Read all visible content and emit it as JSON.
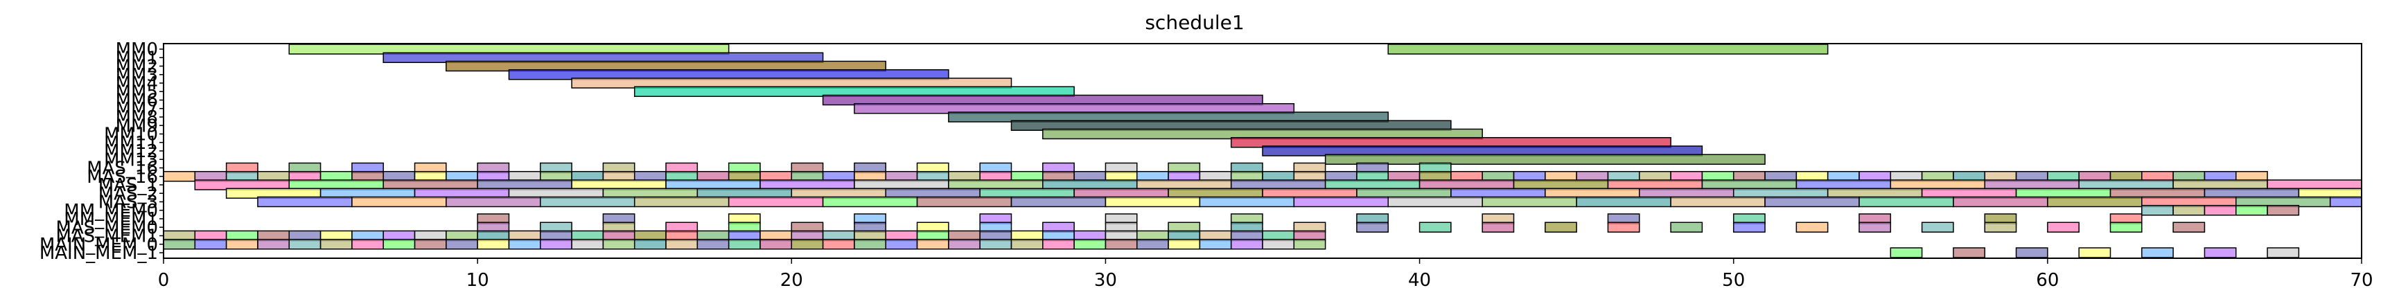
{
  "chart_data": {
    "type": "gantt",
    "title": "schedule1",
    "xlabel": "",
    "ylabel": "",
    "xlim": [
      0,
      70
    ],
    "xticks": [
      0,
      10,
      20,
      30,
      40,
      50,
      60,
      70
    ],
    "grid": false,
    "legend": "none",
    "rows": [
      "MM0",
      "MM1",
      "MM2",
      "MM3",
      "MM4",
      "MM5",
      "MM6",
      "MM7",
      "MM8",
      "MM9",
      "MM10",
      "MM11",
      "MM12",
      "MM13",
      "MAS_16",
      "MAS_16",
      "MAS_1",
      "MAS_2",
      "MAS_3",
      "MM_MEM0",
      "MM_MEM1",
      "MAS_MEM0",
      "MAS_MEM1",
      "MAIN_MEM_0",
      "MAIN_MEM_1"
    ],
    "row_label_note": "labels overlap heavily in the original; several are illegible",
    "tasks": [
      {
        "row": 0,
        "start": 4,
        "end": 18,
        "color": "#a8f070"
      },
      {
        "row": 0,
        "start": 39,
        "end": 53,
        "color": "#7ec850"
      },
      {
        "row": 1,
        "start": 7,
        "end": 21,
        "color": "#4a4ad8"
      },
      {
        "row": 2,
        "start": 9,
        "end": 23,
        "color": "#a0782a"
      },
      {
        "row": 3,
        "start": 11,
        "end": 25,
        "color": "#3a3aea"
      },
      {
        "row": 4,
        "start": 13,
        "end": 27,
        "color": "#f0b890"
      },
      {
        "row": 5,
        "start": 15,
        "end": 29,
        "color": "#20d8a8"
      },
      {
        "row": 6,
        "start": 21,
        "end": 35,
        "color": "#8a3aa8"
      },
      {
        "row": 7,
        "start": 22,
        "end": 36,
        "color": "#b060c8"
      },
      {
        "row": 8,
        "start": 25,
        "end": 39,
        "color": "#3a6a6a"
      },
      {
        "row": 9,
        "start": 27,
        "end": 41,
        "color": "#2a4a4a"
      },
      {
        "row": 10,
        "start": 28,
        "end": 42,
        "color": "#80b060"
      },
      {
        "row": 11,
        "start": 34,
        "end": 48,
        "color": "#d82a4a"
      },
      {
        "row": 12,
        "start": 35,
        "end": 49,
        "color": "#2a2ab8"
      },
      {
        "row": 13,
        "start": 37,
        "end": 51,
        "color": "#70a050"
      }
    ],
    "dense_rows": [
      {
        "row": 14,
        "start": 2,
        "step": 2,
        "count": 20,
        "width": 1,
        "skip_every": 0,
        "offset_colors": 0
      },
      {
        "row": 15,
        "start": 0,
        "step": 1,
        "count": 67,
        "width": 1,
        "skip_every": 0,
        "offset_colors": 3
      },
      {
        "row": 16,
        "start": 1,
        "step": 3,
        "count": 23,
        "width": 3,
        "skip_every": 0,
        "offset_colors": 7
      },
      {
        "row": 17,
        "start": 2,
        "step": 3,
        "count": 23,
        "width": 3,
        "skip_every": 0,
        "offset_colors": 11
      },
      {
        "row": 18,
        "start": 3,
        "step": 3,
        "count": 23,
        "width": 3,
        "skip_every": 0,
        "offset_colors": 2
      },
      {
        "row": 19,
        "start": 63,
        "step": 1,
        "count": 5,
        "width": 1,
        "skip_every": 0,
        "offset_colors": 5
      },
      {
        "row": 20,
        "start": 10,
        "step": 4,
        "count": 14,
        "width": 1,
        "skip_every": 0,
        "offset_colors": 9
      },
      {
        "row": 21,
        "start": 10,
        "step": 2,
        "count": 28,
        "width": 1,
        "skip_every": 0,
        "offset_colors": 4
      },
      {
        "row": 22,
        "start": 0,
        "step": 1,
        "count": 37,
        "width": 1,
        "skip_every": 0,
        "offset_colors": 6
      },
      {
        "row": 23,
        "start": 0,
        "step": 1,
        "count": 37,
        "width": 1,
        "skip_every": 0,
        "offset_colors": 1
      },
      {
        "row": 24,
        "start": 55,
        "step": 2,
        "count": 7,
        "width": 1,
        "skip_every": 0,
        "offset_colors": 8
      }
    ],
    "palette": [
      "#ff7f7f",
      "#7fbf7f",
      "#7f7fff",
      "#ffbf7f",
      "#bf7fbf",
      "#7fbfbf",
      "#bfbf7f",
      "#ff7fbf",
      "#7fff7f",
      "#bf7f7f",
      "#7f7fbf",
      "#ffff7f",
      "#7fbfff",
      "#bf7fff",
      "#cfcfcf",
      "#9fcf7f",
      "#5fafaf",
      "#e0c090",
      "#8080c0",
      "#60d0a0",
      "#d070a0",
      "#a0a040"
    ]
  }
}
